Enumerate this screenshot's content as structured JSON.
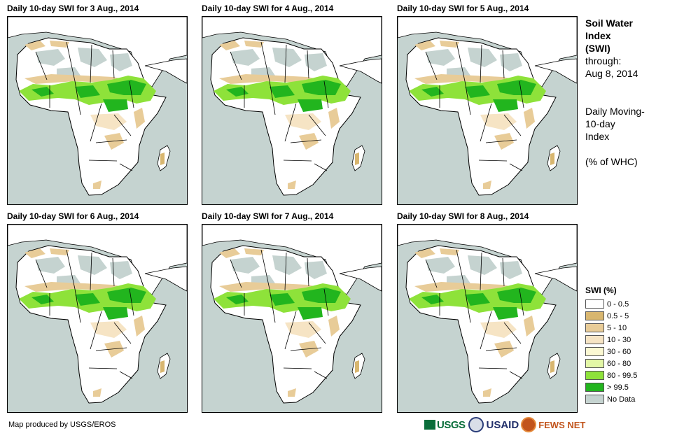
{
  "panels": [
    {
      "title": "Daily 10-day SWI for 3 Aug., 2014"
    },
    {
      "title": "Daily 10-day SWI for 4 Aug., 2014"
    },
    {
      "title": "Daily 10-day SWI for 5 Aug., 2014"
    },
    {
      "title": "Daily 10-day SWI for 6 Aug., 2014"
    },
    {
      "title": "Daily 10-day SWI for 7 Aug., 2014"
    },
    {
      "title": "Daily 10-day SWI for 8 Aug., 2014"
    }
  ],
  "side": {
    "heading1": "Soil Water",
    "heading2": "Index",
    "heading3": "(SWI)",
    "through_label": "through:",
    "through_date": "Aug 8, 2014",
    "desc1": "Daily Moving-",
    "desc2": "10-day",
    "desc3": "Index",
    "units": "(% of WHC)"
  },
  "legend": {
    "title": "SWI (%)",
    "items": [
      {
        "label": "0 - 0.5",
        "color": "#ffffff"
      },
      {
        "label": "0.5 - 5",
        "color": "#d8b66f"
      },
      {
        "label": "5 - 10",
        "color": "#e8cc98"
      },
      {
        "label": "10 - 30",
        "color": "#f6e4c4"
      },
      {
        "label": "30 - 60",
        "color": "#fbf8d2"
      },
      {
        "label": "60 - 80",
        "color": "#e3f7a6"
      },
      {
        "label": "80 - 99.5",
        "color": "#8ee23a"
      },
      {
        "label": "> 99.5",
        "color": "#22b51e"
      },
      {
        "label": "No Data",
        "color": "#c5d3d0"
      }
    ]
  },
  "credit": "Map produced by USGS/EROS",
  "logos": {
    "usgs": "USGS",
    "usaid": "USAID",
    "fews": "FEWS NET"
  }
}
